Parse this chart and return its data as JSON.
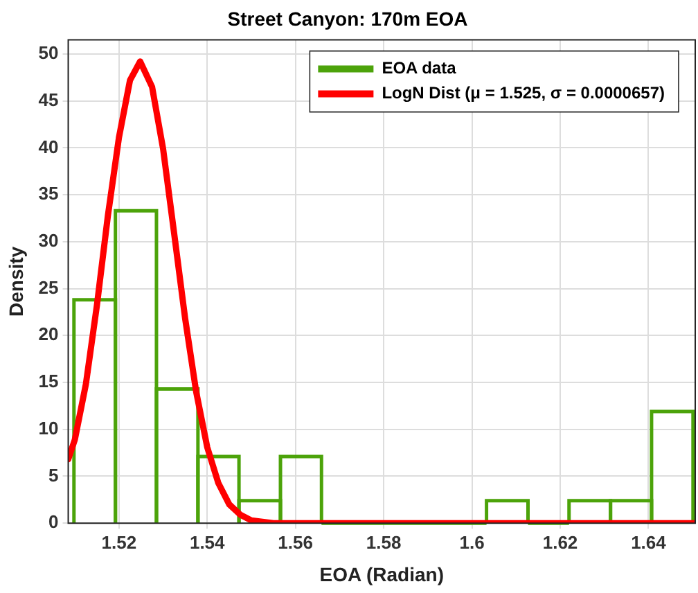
{
  "chart_data": {
    "type": "histogram",
    "title": "Street Canyon: 170m EOA",
    "xlabel": "EOA (Radian)",
    "ylabel": "Density",
    "series": [
      {
        "name": "EOA data",
        "color": "#4ca30a",
        "bins": [
          1.5098,
          1.5192,
          1.5285,
          1.5379,
          1.5472,
          1.5566,
          1.5659,
          1.6033,
          1.6127,
          1.622,
          1.6314,
          1.6407,
          1.6501
        ],
        "values": [
          23.8,
          33.3,
          14.3,
          7.1,
          2.4,
          7.1,
          0,
          2.4,
          0,
          2.4,
          2.4,
          11.9
        ]
      },
      {
        "type": "line",
        "name": "LogN Dist (μ = 1.525, σ = 0.0000657)",
        "color": "#ff0000",
        "x": [
          1.5085,
          1.51,
          1.5125,
          1.515,
          1.5175,
          1.52,
          1.5225,
          1.5248,
          1.5275,
          1.53,
          1.5325,
          1.535,
          1.5375,
          1.54,
          1.5425,
          1.545,
          1.5475,
          1.55,
          1.555,
          1.6506
        ],
        "values": [
          6.8,
          8.9,
          14.8,
          23.2,
          32.8,
          41.1,
          47.2,
          49.2,
          46.5,
          39.9,
          30.9,
          21.8,
          14.0,
          8.1,
          4.3,
          2.0,
          0.9,
          0.3,
          0,
          0
        ]
      }
    ],
    "xlim": [
      1.5085,
      1.6506
    ],
    "xticks": [
      1.52,
      1.54,
      1.56,
      1.58,
      1.6,
      1.62,
      1.64
    ],
    "ylim": [
      0,
      51.5
    ],
    "yticks": [
      0,
      5,
      10,
      15,
      20,
      25,
      30,
      35,
      40,
      45,
      50
    ],
    "grid": true,
    "legend": "top right"
  }
}
